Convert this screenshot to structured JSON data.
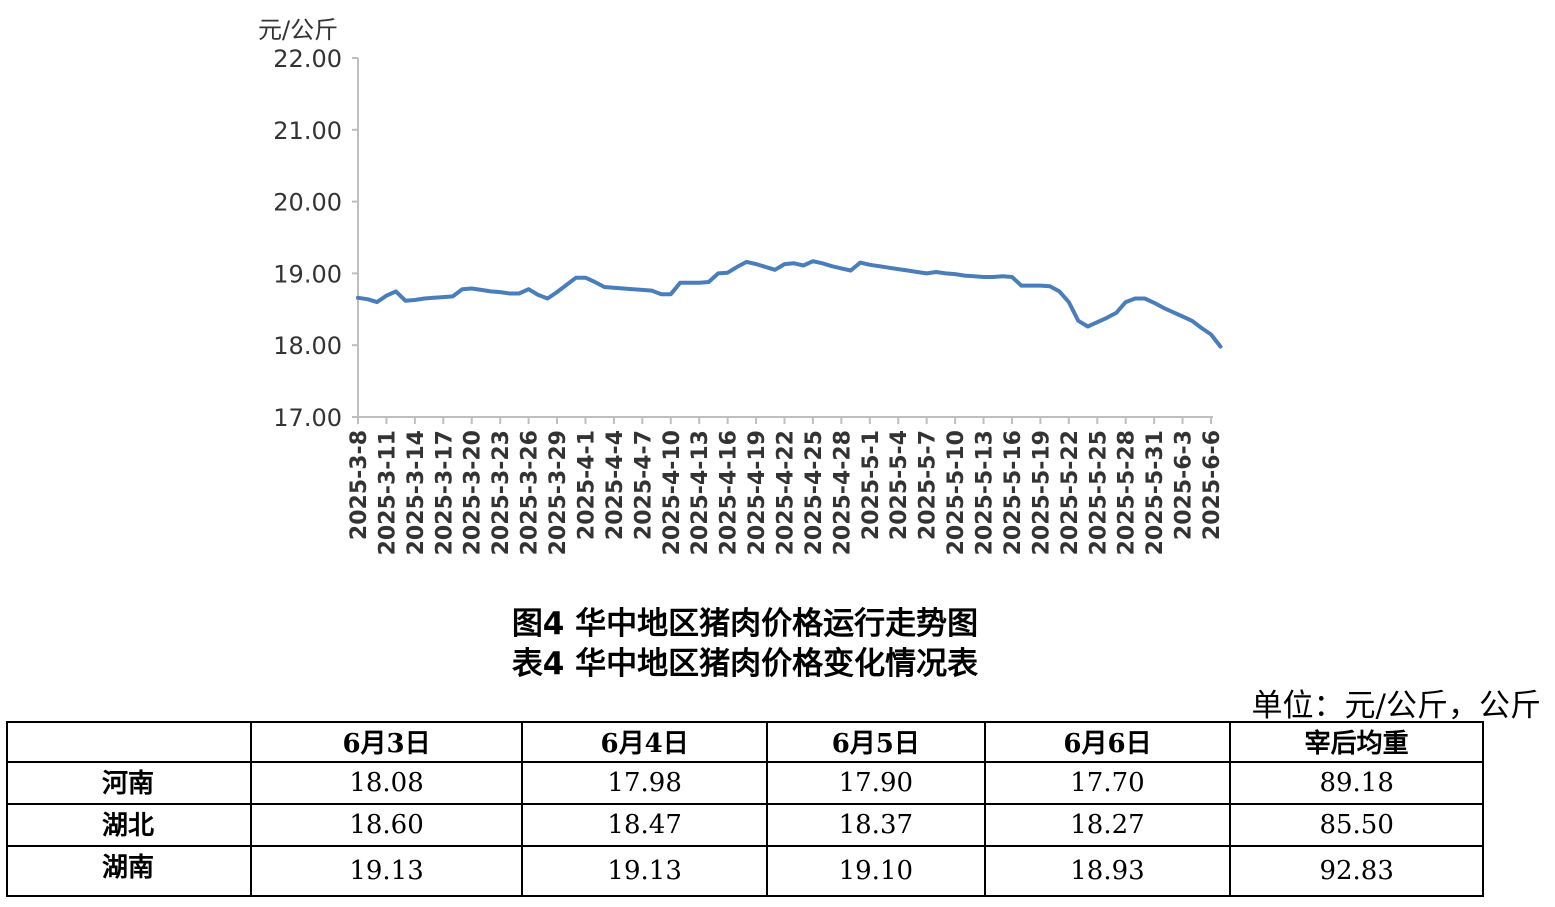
{
  "chart_data": {
    "type": "line",
    "ylabel": "元/公斤",
    "ylim": [
      17.0,
      22.0
    ],
    "yticks": [
      "17.00",
      "18.00",
      "19.00",
      "20.00",
      "21.00",
      "22.00"
    ],
    "x_tick_labels": [
      "2025-3-8",
      "2025-3-11",
      "2025-3-14",
      "2025-3-17",
      "2025-3-20",
      "2025-3-23",
      "2025-3-26",
      "2025-3-29",
      "2025-4-1",
      "2025-4-4",
      "2025-4-7",
      "2025-4-10",
      "2025-4-13",
      "2025-4-16",
      "2025-4-19",
      "2025-4-22",
      "2025-4-25",
      "2025-4-28",
      "2025-5-1",
      "2025-5-4",
      "2025-5-7",
      "2025-5-10",
      "2025-5-13",
      "2025-5-16",
      "2025-5-19",
      "2025-5-22",
      "2025-5-25",
      "2025-5-28",
      "2025-5-31",
      "2025-6-3",
      "2025-6-6"
    ],
    "line_color": "#4a7ebb",
    "series": [
      {
        "points": [
          [
            "2025-3-8",
            18.66
          ],
          [
            "2025-3-9",
            18.64
          ],
          [
            "2025-3-10",
            18.6
          ],
          [
            "2025-3-11",
            18.69
          ],
          [
            "2025-3-12",
            18.75
          ],
          [
            "2025-3-13",
            18.62
          ],
          [
            "2025-3-14",
            18.63
          ],
          [
            "2025-3-15",
            18.65
          ],
          [
            "2025-3-16",
            18.66
          ],
          [
            "2025-3-17",
            18.67
          ],
          [
            "2025-3-18",
            18.68
          ],
          [
            "2025-3-19",
            18.78
          ],
          [
            "2025-3-20",
            18.79
          ],
          [
            "2025-3-21",
            18.77
          ],
          [
            "2025-3-22",
            18.75
          ],
          [
            "2025-3-23",
            18.74
          ],
          [
            "2025-3-24",
            18.72
          ],
          [
            "2025-3-25",
            18.72
          ],
          [
            "2025-3-26",
            18.78
          ],
          [
            "2025-3-27",
            18.7
          ],
          [
            "2025-3-28",
            18.65
          ],
          [
            "2025-3-29",
            18.74
          ],
          [
            "2025-3-30",
            18.84
          ],
          [
            "2025-3-31",
            18.94
          ],
          [
            "2025-4-1",
            18.94
          ],
          [
            "2025-4-2",
            18.88
          ],
          [
            "2025-4-3",
            18.81
          ],
          [
            "2025-4-4",
            18.8
          ],
          [
            "2025-4-5",
            18.79
          ],
          [
            "2025-4-6",
            18.78
          ],
          [
            "2025-4-7",
            18.77
          ],
          [
            "2025-4-8",
            18.76
          ],
          [
            "2025-4-9",
            18.71
          ],
          [
            "2025-4-10",
            18.71
          ],
          [
            "2025-4-11",
            18.87
          ],
          [
            "2025-4-12",
            18.87
          ],
          [
            "2025-4-13",
            18.87
          ],
          [
            "2025-4-14",
            18.88
          ],
          [
            "2025-4-15",
            19.0
          ],
          [
            "2025-4-16",
            19.01
          ],
          [
            "2025-4-17",
            19.09
          ],
          [
            "2025-4-18",
            19.16
          ],
          [
            "2025-4-19",
            19.13
          ],
          [
            "2025-4-20",
            19.09
          ],
          [
            "2025-4-21",
            19.05
          ],
          [
            "2025-4-22",
            19.13
          ],
          [
            "2025-4-23",
            19.14
          ],
          [
            "2025-4-24",
            19.11
          ],
          [
            "2025-4-25",
            19.17
          ],
          [
            "2025-4-26",
            19.14
          ],
          [
            "2025-4-27",
            19.1
          ],
          [
            "2025-4-28",
            19.07
          ],
          [
            "2025-4-29",
            19.04
          ],
          [
            "2025-4-30",
            19.15
          ],
          [
            "2025-5-1",
            19.12
          ],
          [
            "2025-5-2",
            19.1
          ],
          [
            "2025-5-3",
            19.08
          ],
          [
            "2025-5-4",
            19.06
          ],
          [
            "2025-5-5",
            19.04
          ],
          [
            "2025-5-6",
            19.02
          ],
          [
            "2025-5-7",
            19.0
          ],
          [
            "2025-5-8",
            19.02
          ],
          [
            "2025-5-9",
            19.0
          ],
          [
            "2025-5-10",
            18.99
          ],
          [
            "2025-5-11",
            18.97
          ],
          [
            "2025-5-12",
            18.96
          ],
          [
            "2025-5-13",
            18.95
          ],
          [
            "2025-5-14",
            18.95
          ],
          [
            "2025-5-15",
            18.96
          ],
          [
            "2025-5-16",
            18.95
          ],
          [
            "2025-5-17",
            18.83
          ],
          [
            "2025-5-18",
            18.83
          ],
          [
            "2025-5-19",
            18.83
          ],
          [
            "2025-5-20",
            18.82
          ],
          [
            "2025-5-21",
            18.75
          ],
          [
            "2025-5-22",
            18.6
          ],
          [
            "2025-5-23",
            18.34
          ],
          [
            "2025-5-24",
            18.26
          ],
          [
            "2025-5-25",
            18.32
          ],
          [
            "2025-5-26",
            18.38
          ],
          [
            "2025-5-27",
            18.45
          ],
          [
            "2025-5-28",
            18.6
          ],
          [
            "2025-5-29",
            18.65
          ],
          [
            "2025-5-30",
            18.65
          ],
          [
            "2025-5-31",
            18.59
          ],
          [
            "2025-6-1",
            18.52
          ],
          [
            "2025-6-2",
            18.46
          ],
          [
            "2025-6-3",
            18.4
          ],
          [
            "2025-6-4",
            18.34
          ],
          [
            "2025-6-5",
            18.24
          ],
          [
            "2025-6-6",
            18.15
          ],
          [
            "2025-6-7",
            17.98
          ]
        ]
      }
    ]
  },
  "captions": {
    "figure": "图4  华中地区猪肉价格运行走势图",
    "table": "表4  华中地区猪肉价格变化情况表"
  },
  "table": {
    "unit": "单位：元/公斤，公斤",
    "headers": [
      "",
      "6月3日",
      "6月4日",
      "6月5日",
      "6月6日",
      "宰后均重"
    ],
    "rows": [
      {
        "region": "河南",
        "values": [
          "18.08",
          "17.98",
          "17.90",
          "17.70",
          "89.18"
        ]
      },
      {
        "region": "湖北",
        "values": [
          "18.60",
          "18.47",
          "18.37",
          "18.27",
          "85.50"
        ]
      },
      {
        "region": "湖南",
        "values": [
          "19.13",
          "19.13",
          "19.10",
          "18.93",
          "92.83"
        ]
      }
    ]
  }
}
